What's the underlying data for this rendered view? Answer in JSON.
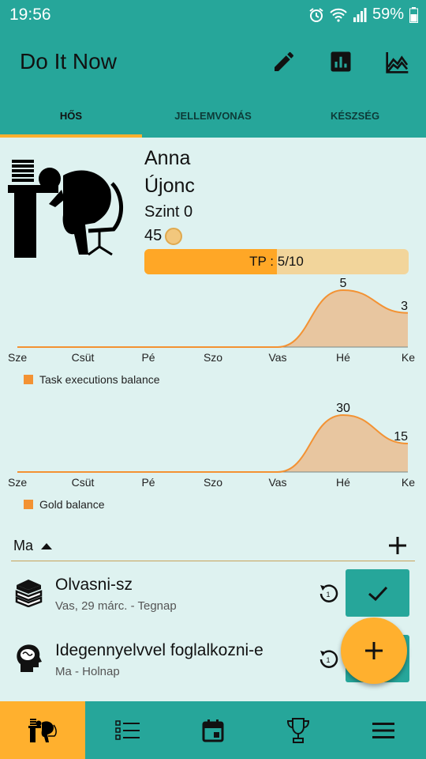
{
  "status_bar": {
    "time": "19:56",
    "battery": "59%",
    "icons": [
      "alarm-icon",
      "wifi-icon",
      "signal-icon",
      "battery-icon"
    ]
  },
  "app": {
    "title": "Do It Now",
    "actions": [
      "pencil-icon",
      "bar-chart-icon",
      "line-chart-icon"
    ]
  },
  "tabs": [
    {
      "label": "HŐS",
      "active": true
    },
    {
      "label": "JELLEMVONÁS",
      "active": false
    },
    {
      "label": "KÉSZSÉG",
      "active": false
    }
  ],
  "hero": {
    "name": "Anna",
    "rank": "Újonc",
    "level": "Szint 0",
    "gold": "45",
    "tp_text": "TP : 5/10",
    "tp_progress": 0.5
  },
  "colors": {
    "primary": "#26a69a",
    "accent": "#ffb02e",
    "chart_line": "#f39233",
    "chart_fill": "#e8c6a0"
  },
  "chart_data": [
    {
      "type": "area",
      "categories": [
        "Sze",
        "Csüt",
        "Pé",
        "Szo",
        "Vas",
        "Hé",
        "Ke"
      ],
      "series": [
        {
          "name": "Task executions balance",
          "values": [
            0,
            0,
            0,
            0,
            0,
            5,
            3
          ]
        }
      ],
      "data_labels": [
        "5",
        "3"
      ],
      "legend": "bottom-left"
    },
    {
      "type": "area",
      "categories": [
        "Sze",
        "Csüt",
        "Pé",
        "Szo",
        "Vas",
        "Hé",
        "Ke"
      ],
      "series": [
        {
          "name": "Gold balance",
          "values": [
            0,
            0,
            0,
            0,
            0,
            30,
            15
          ]
        }
      ],
      "data_labels": [
        "30",
        "15"
      ],
      "legend": "bottom-left"
    }
  ],
  "list": {
    "section_label": "Ma"
  },
  "tasks": [
    {
      "title": "Olvasni-sz",
      "subtitle": "Vas, 29 márc. - Tegnap",
      "icon": "books-icon"
    },
    {
      "title": "Idegennyelvvel foglalkozni-e",
      "subtitle": "Ma - Holnap",
      "icon": "brain-head-icon"
    }
  ],
  "bottom_nav": [
    "hero-icon",
    "list-icon",
    "calendar-icon",
    "trophy-icon",
    "menu-icon"
  ]
}
